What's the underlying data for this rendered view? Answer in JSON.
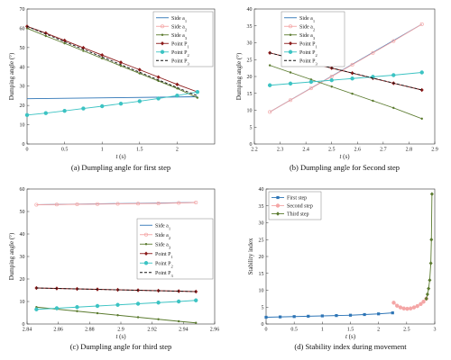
{
  "chart_data": [
    {
      "type": "line",
      "caption": "(a) Dumpling angle for first step",
      "xlabel": "t",
      "xunit": " (s)",
      "ylabel": "Dumping angle (°)",
      "xlim": [
        0,
        2.5
      ],
      "ylim": [
        0,
        70
      ],
      "xticks": [
        "0",
        "0.5",
        "1",
        "1.5",
        "2"
      ],
      "yticks": [
        "0",
        "10",
        "20",
        "30",
        "40",
        "50",
        "60",
        "70"
      ],
      "legend": "top-right",
      "series": [
        {
          "name": "Side a",
          "sub": "1",
          "color": "#2e75b6",
          "marker": "none",
          "dash": "none",
          "x": [
            0,
            2.27
          ],
          "y": [
            23.5,
            24.5
          ]
        },
        {
          "name": "Side a",
          "sub": "2",
          "color": "#f4a6a6",
          "marker": "circle-open",
          "dash": "none",
          "x": [],
          "y": []
        },
        {
          "name": "Side a",
          "sub": "3",
          "color": "#5a7a2e",
          "marker": "dot",
          "dash": "none",
          "x": [
            0,
            0.25,
            0.5,
            0.75,
            1,
            1.25,
            1.5,
            1.75,
            2,
            2.27
          ],
          "y": [
            60,
            56,
            52.2,
            48.3,
            44.4,
            40.5,
            36.6,
            32.7,
            28.8,
            24
          ]
        },
        {
          "name": "Point P",
          "sub": "1",
          "color": "#8b1a1a",
          "marker": "diamond",
          "dash": "none",
          "x": [
            0,
            0.25,
            0.5,
            0.75,
            1,
            1.25,
            1.5,
            1.75,
            2,
            2.27
          ],
          "y": [
            61,
            57.5,
            53.7,
            49.9,
            46.1,
            42.3,
            38.5,
            34.7,
            30.9,
            27
          ]
        },
        {
          "name": "Point P",
          "sub": "2",
          "color": "#3cc3c3",
          "marker": "circle",
          "dash": "none",
          "x": [
            0,
            0.25,
            0.5,
            0.75,
            1,
            1.25,
            1.5,
            1.75,
            2,
            2.27
          ],
          "y": [
            15,
            16,
            17.2,
            18.4,
            19.6,
            20.9,
            22.2,
            23.6,
            25.1,
            27
          ]
        },
        {
          "name": "Point P",
          "sub": "3",
          "color": "#111111",
          "marker": "none",
          "dash": "3,2",
          "x": [
            0,
            2.27
          ],
          "y": [
            61,
            25
          ]
        }
      ]
    },
    {
      "type": "line",
      "caption": "(b) Dumpling angle for Second step",
      "xlabel": "t",
      "xunit": " (s)",
      "ylabel": "Dumping angle (°)",
      "xlim": [
        2.2,
        2.9
      ],
      "ylim": [
        0,
        40
      ],
      "xticks": [
        "2.2",
        "2.3",
        "2.4",
        "2.5",
        "2.6",
        "2.7",
        "2.8",
        "2.9"
      ],
      "yticks": [
        "0",
        "5",
        "10",
        "15",
        "20",
        "25",
        "30",
        "35",
        "40"
      ],
      "legend": "top-left",
      "series": [
        {
          "name": "Side a",
          "sub": "1",
          "color": "#2e75b6",
          "marker": "none",
          "dash": "none",
          "x": [
            2.26,
            2.85
          ],
          "y": [
            9.5,
            35.5
          ]
        },
        {
          "name": "Side a",
          "sub": "2",
          "color": "#f4a6a6",
          "marker": "circle-open",
          "dash": "none",
          "x": [
            2.26,
            2.34,
            2.42,
            2.5,
            2.58,
            2.66,
            2.74,
            2.85
          ],
          "y": [
            9.5,
            13,
            16.5,
            20,
            23.5,
            27,
            30.5,
            35.5
          ]
        },
        {
          "name": "Side a",
          "sub": "3",
          "color": "#5a7a2e",
          "marker": "dot",
          "dash": "none",
          "x": [
            2.26,
            2.34,
            2.42,
            2.5,
            2.58,
            2.66,
            2.74,
            2.85
          ],
          "y": [
            23.3,
            21.2,
            19.1,
            17,
            14.9,
            12.8,
            10.7,
            7.5
          ]
        },
        {
          "name": "Point P",
          "sub": "1",
          "color": "#8b1a1a",
          "marker": "diamond",
          "dash": "none",
          "x": [
            2.26,
            2.34,
            2.42,
            2.5,
            2.58,
            2.66,
            2.74,
            2.85
          ],
          "y": [
            27,
            25.5,
            24,
            22.5,
            21,
            19.5,
            18,
            16
          ]
        },
        {
          "name": "Point P",
          "sub": "2",
          "color": "#3cc3c3",
          "marker": "circle",
          "dash": "none",
          "x": [
            2.26,
            2.34,
            2.42,
            2.5,
            2.58,
            2.66,
            2.74,
            2.85
          ],
          "y": [
            17.4,
            17.9,
            18.4,
            18.9,
            19.4,
            19.9,
            20.4,
            21.2
          ]
        },
        {
          "name": "Point P",
          "sub": "3",
          "color": "#111111",
          "marker": "none",
          "dash": "3,2",
          "x": [
            2.26,
            2.85
          ],
          "y": [
            27,
            16
          ]
        }
      ]
    },
    {
      "type": "line",
      "caption": "(c) Dumpling angle for third step",
      "xlabel": "t",
      "xunit": " (s)",
      "ylabel": "Dumping angle (°)",
      "xlim": [
        2.84,
        2.96
      ],
      "ylim": [
        0,
        60
      ],
      "xticks": [
        "2.84",
        "2.86",
        "2.88",
        "2.9",
        "2.92",
        "2.94",
        "2.96"
      ],
      "yticks": [
        "0",
        "10",
        "20",
        "30",
        "40",
        "50",
        "60"
      ],
      "legend": "right",
      "series": [
        {
          "name": "Side a",
          "sub": "1",
          "color": "#2e75b6",
          "marker": "none",
          "dash": "none",
          "x": [
            2.846,
            2.948
          ],
          "y": [
            53,
            54
          ]
        },
        {
          "name": "Side a",
          "sub": "2",
          "color": "#f4a6a6",
          "marker": "circle-open",
          "dash": "none",
          "x": [
            2.846,
            2.859,
            2.872,
            2.885,
            2.898,
            2.911,
            2.924,
            2.937,
            2.948
          ],
          "y": [
            53,
            53.1,
            53.2,
            53.3,
            53.4,
            53.5,
            53.6,
            53.8,
            54
          ]
        },
        {
          "name": "Side a",
          "sub": "3",
          "color": "#5a7a2e",
          "marker": "dot",
          "dash": "none",
          "x": [
            2.846,
            2.859,
            2.872,
            2.885,
            2.898,
            2.911,
            2.924,
            2.937,
            2.948
          ],
          "y": [
            7.5,
            6.6,
            5.7,
            4.8,
            3.9,
            3,
            2.1,
            1.2,
            0.5
          ]
        },
        {
          "name": "Point P",
          "sub": "1",
          "color": "#8b1a1a",
          "marker": "diamond",
          "dash": "none",
          "x": [
            2.846,
            2.859,
            2.872,
            2.885,
            2.898,
            2.911,
            2.924,
            2.937,
            2.948
          ],
          "y": [
            16,
            15.8,
            15.6,
            15.4,
            15.2,
            15,
            14.8,
            14.6,
            14.4
          ]
        },
        {
          "name": "Point P",
          "sub": "2",
          "color": "#3cc3c3",
          "marker": "circle",
          "dash": "none",
          "x": [
            2.846,
            2.859,
            2.872,
            2.885,
            2.898,
            2.911,
            2.924,
            2.937,
            2.948
          ],
          "y": [
            6.5,
            7,
            7.5,
            8,
            8.5,
            9,
            9.5,
            10,
            10.5
          ]
        },
        {
          "name": "Point P",
          "sub": "3",
          "color": "#111111",
          "marker": "none",
          "dash": "3,2",
          "x": [
            2.846,
            2.948
          ],
          "y": [
            16,
            14.4
          ]
        }
      ]
    },
    {
      "type": "line",
      "caption": "(d) Stability index during movement",
      "xlabel": "t",
      "xunit": " (s)",
      "ylabel": "Stability index",
      "xlim": [
        0,
        3
      ],
      "ylim": [
        0,
        40
      ],
      "xticks": [
        "0",
        "0.5",
        "1",
        "1.5",
        "2",
        "2.5",
        "3"
      ],
      "yticks": [
        "0",
        "5",
        "10",
        "15",
        "20",
        "25",
        "30",
        "35",
        "40"
      ],
      "legend": "top-left",
      "series": [
        {
          "name": "First step",
          "sub": "",
          "color": "#2e75b6",
          "marker": "square",
          "dash": "none",
          "x": [
            0,
            0.25,
            0.5,
            0.75,
            1,
            1.25,
            1.5,
            1.75,
            2,
            2.25
          ],
          "y": [
            2,
            2.1,
            2.2,
            2.3,
            2.4,
            2.5,
            2.6,
            2.8,
            3,
            3.3
          ]
        },
        {
          "name": "Second step",
          "sub": "",
          "color": "#f4a6a6",
          "marker": "circle",
          "dash": "none",
          "x": [
            2.27,
            2.33,
            2.39,
            2.45,
            2.51,
            2.57,
            2.63,
            2.69,
            2.75,
            2.8,
            2.85
          ],
          "y": [
            6.3,
            5.4,
            4.9,
            4.6,
            4.5,
            4.6,
            4.9,
            5.3,
            5.9,
            6.6,
            7.5
          ]
        },
        {
          "name": "Third step",
          "sub": "",
          "color": "#5a7a2e",
          "marker": "diamond",
          "dash": "none",
          "x": [
            2.85,
            2.87,
            2.89,
            2.91,
            2.93,
            2.94,
            2.95
          ],
          "y": [
            7.5,
            8.8,
            10.5,
            13,
            18,
            25,
            38.5
          ]
        }
      ]
    }
  ]
}
